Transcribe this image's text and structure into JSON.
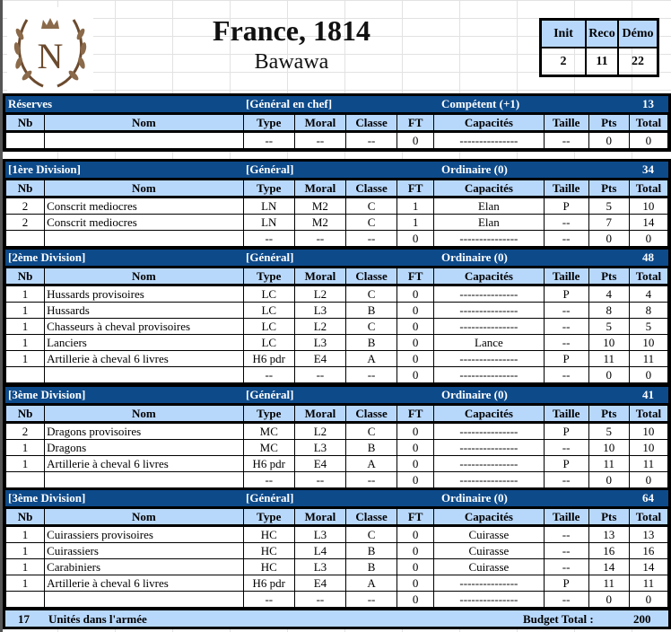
{
  "header": {
    "title": "France, 1814",
    "subtitle": "Bawawa",
    "logo_letter": "N",
    "stats": {
      "labels": [
        "Init",
        "Reco",
        "Démo"
      ],
      "values": [
        "2",
        "11",
        "22"
      ]
    }
  },
  "columns": [
    "Nb",
    "Nom",
    "Type",
    "Moral",
    "Classe",
    "FT",
    "Capacités",
    "Taille",
    "Pts",
    "Total"
  ],
  "colors": {
    "section_header": "#0d4a8a",
    "column_header": "#b8d8fb",
    "logo": "#6b4a2e"
  },
  "sections": [
    {
      "name": "Réserves",
      "general": "[Général en chef]",
      "quality": "Compétent (+1)",
      "total": "13",
      "rows": [
        [
          "",
          "",
          "--",
          "--",
          "--",
          "0",
          "---------------",
          "--",
          "0",
          "0"
        ]
      ]
    },
    {
      "name": "[1ère Division]",
      "general": "[Général]",
      "quality": "Ordinaire (0)",
      "total": "34",
      "rows": [
        [
          "2",
          "Conscrit mediocres",
          "LN",
          "M2",
          "C",
          "1",
          "Elan",
          "P",
          "5",
          "10"
        ],
        [
          "2",
          "Conscrit mediocres",
          "LN",
          "M2",
          "C",
          "1",
          "Elan",
          "--",
          "7",
          "14"
        ],
        [
          "",
          "",
          "--",
          "--",
          "--",
          "0",
          "---------------",
          "--",
          "0",
          "0"
        ]
      ]
    },
    {
      "name": "[2ème Division]",
      "general": "[Général]",
      "quality": "Ordinaire (0)",
      "total": "48",
      "rows": [
        [
          "1",
          "Hussards provisoires",
          "LC",
          "L2",
          "C",
          "0",
          "---------------",
          "P",
          "4",
          "4"
        ],
        [
          "1",
          "Hussards",
          "LC",
          "L3",
          "B",
          "0",
          "---------------",
          "--",
          "8",
          "8"
        ],
        [
          "1",
          "Chasseurs à cheval provisoires",
          "LC",
          "L2",
          "C",
          "0",
          "---------------",
          "--",
          "5",
          "5"
        ],
        [
          "1",
          "Lanciers",
          "LC",
          "L3",
          "B",
          "0",
          "Lance",
          "--",
          "10",
          "10"
        ],
        [
          "1",
          "Artillerie à cheval 6 livres",
          "H6 pdr",
          "E4",
          "A",
          "0",
          "---------------",
          "P",
          "11",
          "11"
        ],
        [
          "",
          "",
          "--",
          "--",
          "--",
          "0",
          "---------------",
          "--",
          "0",
          "0"
        ]
      ]
    },
    {
      "name": "[3ème Division]",
      "general": "[Général]",
      "quality": "Ordinaire (0)",
      "total": "41",
      "rows": [
        [
          "2",
          "Dragons provisoires",
          "MC",
          "L2",
          "C",
          "0",
          "---------------",
          "P",
          "5",
          "10"
        ],
        [
          "1",
          "Dragons",
          "MC",
          "L3",
          "B",
          "0",
          "---------------",
          "--",
          "10",
          "10"
        ],
        [
          "1",
          "Artillerie à cheval 6 livres",
          "H6 pdr",
          "E4",
          "A",
          "0",
          "---------------",
          "P",
          "11",
          "11"
        ],
        [
          "",
          "",
          "--",
          "--",
          "--",
          "0",
          "---------------",
          "--",
          "0",
          "0"
        ]
      ]
    },
    {
      "name": "[3ème Division]",
      "general": "[Général]",
      "quality": "Ordinaire (0)",
      "total": "64",
      "rows": [
        [
          "1",
          "Cuirassiers provisoires",
          "HC",
          "L3",
          "C",
          "0",
          "Cuirasse",
          "--",
          "13",
          "13"
        ],
        [
          "1",
          "Cuirassiers",
          "HC",
          "L4",
          "B",
          "0",
          "Cuirasse",
          "--",
          "16",
          "16"
        ],
        [
          "1",
          "Carabiniers",
          "HC",
          "L3",
          "B",
          "0",
          "Cuirasse",
          "--",
          "14",
          "14"
        ],
        [
          "1",
          "Artillerie à cheval 6 livres",
          "H6 pdr",
          "E4",
          "A",
          "0",
          "---------------",
          "P",
          "11",
          "11"
        ],
        [
          "",
          "",
          "--",
          "--",
          "--",
          "0",
          "---------------",
          "--",
          "0",
          "0"
        ]
      ]
    }
  ],
  "footer": {
    "units_count": "17",
    "units_label": "Unités dans l'armée",
    "budget_label": "Budget Total :",
    "budget_value": "200"
  }
}
